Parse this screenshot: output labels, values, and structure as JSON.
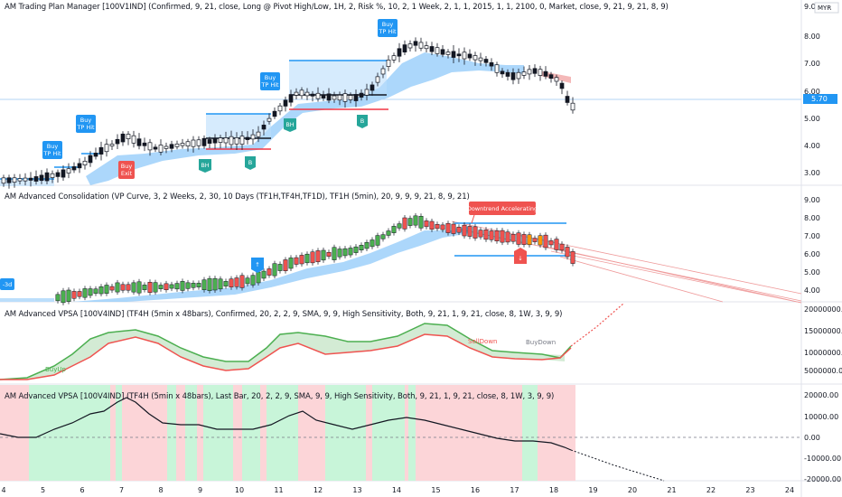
{
  "legends": {
    "p1": "AM Trading Plan Manager [100V1IND] (Confirmed, 9, 21, close, Long @ Pivot High/Low, 1H, 2, Risk %, 10, 2, 1 Week, 2, 1, 1, 2015, 1, 1, 2100, 0, Market, close, 9, 21, 9, 21, 8, 9)",
    "p2": "AM Advanced Consolidation (VP Curve, 3, 2 Weeks, 2, 30, 10 Days (TF1H,TF4H,TF1D), TF1H (5min), 20, 9, 9, 9, 21, 8, 9, 21)",
    "p3": "AM Advanced VPSA [100V4IND] (TF4H (5min x 48bars), Confirmed, 20, 2, 2, 9, SMA, 9, 9, High Sensitivity, Both, 9, 21, 1, 9, 21, close, 8, 1W, 3, 9, 9)",
    "p4": "AM Advanced VPSA [100V4IND] (TF4H (5min x 48bars), Last Bar, 20, 2, 2, 9, SMA, 9, 9, High Sensitivity, Both, 9, 21, 1, 9, 21, close, 8, 1W, 3, 9, 9)"
  },
  "currency": "MYR",
  "p1_axis": [
    "9.00",
    "8.00",
    "7.00",
    "6.00",
    "5.00",
    "4.00",
    "3.00"
  ],
  "p1_price_tag": "5.70",
  "p2_axis": [
    "9.00",
    "8.00",
    "7.00",
    "6.00",
    "5.00",
    "4.00"
  ],
  "p3_axis": [
    "20000000.00",
    "15000000.00",
    "10000000.00",
    "5000000.00"
  ],
  "p4_axis": [
    "20000.00",
    "10000.00",
    "0.00",
    "-10000.00",
    "-20000.00"
  ],
  "x_axis": [
    "4",
    "5",
    "6",
    "7",
    "8",
    "9",
    "10",
    "11",
    "12",
    "13",
    "14",
    "15",
    "16",
    "17",
    "18",
    "19",
    "20",
    "21",
    "22",
    "23",
    "24"
  ],
  "tags": {
    "buy_tp_hit": [
      "Buy",
      "TP Hit"
    ],
    "buy_exit": [
      "Buy",
      "Exit"
    ],
    "bh": "BH",
    "b": "B"
  },
  "p2_labels": {
    "downtrend": "Downtrend Accelerating",
    "left_tag": "-3d",
    "up_marker": "↑",
    "down_marker": "↓"
  },
  "p3_labels": {
    "buy_up": "BuyUp",
    "sell_down": "SellDown",
    "buy_down": "BuyDown"
  },
  "colors": {
    "up": "#26a69a",
    "down": "#131722",
    "bull_bar": "#4caf50",
    "bear_bar": "#ef5350",
    "orange_bar": "#ff9800",
    "blue": "#2196f3",
    "band": "#90caf9",
    "red": "#f23645",
    "green_zone": "#c8f5d9",
    "red_zone": "#fcd5d8"
  }
}
